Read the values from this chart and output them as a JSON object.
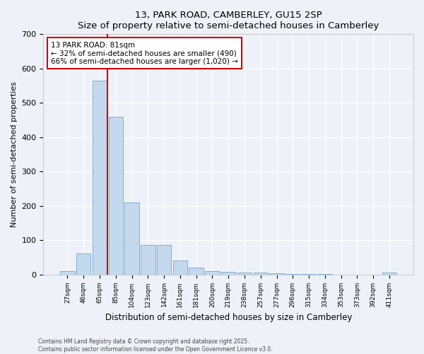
{
  "title1": "13, PARK ROAD, CAMBERLEY, GU15 2SP",
  "title2": "Size of property relative to semi-detached houses in Camberley",
  "xlabel": "Distribution of semi-detached houses by size in Camberley",
  "ylabel": "Number of semi-detached properties",
  "bar_labels": [
    "27sqm",
    "46sqm",
    "65sqm",
    "85sqm",
    "104sqm",
    "123sqm",
    "142sqm",
    "161sqm",
    "181sqm",
    "200sqm",
    "219sqm",
    "238sqm",
    "257sqm",
    "277sqm",
    "296sqm",
    "315sqm",
    "334sqm",
    "353sqm",
    "373sqm",
    "392sqm",
    "411sqm"
  ],
  "bar_values": [
    10,
    60,
    565,
    460,
    210,
    85,
    85,
    40,
    20,
    10,
    8,
    5,
    5,
    3,
    2,
    2,
    2,
    0,
    0,
    0,
    5
  ],
  "bar_color": "#c5d9ee",
  "bar_edge_color": "#7aaed6",
  "subject_line_color": "#cc0000",
  "annotation_text": "13 PARK ROAD: 81sqm\n← 32% of semi-detached houses are smaller (490)\n66% of semi-detached houses are larger (1,020) →",
  "annotation_box_color": "#ffffff",
  "annotation_box_edge": "#cc0000",
  "ylim": [
    0,
    700
  ],
  "yticks": [
    0,
    100,
    200,
    300,
    400,
    500,
    600,
    700
  ],
  "footer1": "Contains HM Land Registry data © Crown copyright and database right 2025.",
  "footer2": "Contains public sector information licensed under the Open Government Licence v3.0.",
  "bg_color": "#eef2f8",
  "grid_color": "#ffffff"
}
